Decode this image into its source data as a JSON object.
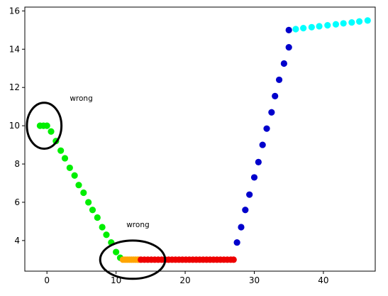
{
  "chart_data": {
    "type": "scatter",
    "xlim": [
      -3.2,
      47.5
    ],
    "ylim": [
      2.4,
      16.2
    ],
    "x_ticks": [
      0,
      10,
      20,
      30,
      40
    ],
    "y_ticks": [
      4,
      6,
      8,
      10,
      12,
      14,
      16
    ],
    "grid": false,
    "series": [
      {
        "color": "#00ee00",
        "x": [
          -1.0,
          -0.5,
          0.0,
          0.6,
          1.3,
          2.0,
          2.6,
          3.3,
          4.0,
          4.6,
          5.3,
          6.0,
          6.6,
          7.3,
          8.0,
          8.6,
          9.3,
          10.0,
          10.6
        ],
        "y": [
          10.0,
          10.0,
          10.0,
          9.7,
          9.2,
          8.7,
          8.3,
          7.8,
          7.4,
          6.9,
          6.5,
          6.0,
          5.6,
          5.2,
          4.7,
          4.3,
          3.9,
          3.4,
          3.1
        ]
      },
      {
        "color": "#ffa500",
        "x": [
          11.0,
          11.3,
          11.6,
          11.9,
          12.2,
          12.5,
          12.8,
          13.1,
          13.3
        ],
        "y": [
          3.0,
          3.0,
          3.0,
          3.0,
          3.0,
          3.0,
          3.0,
          3.0,
          3.0
        ]
      },
      {
        "color": "#ee0000",
        "x": [
          13.6,
          14.1,
          14.6,
          15.1,
          15.6,
          16.1,
          16.6,
          17.1,
          17.6,
          18.1,
          18.6,
          19.1,
          19.6,
          20.1,
          20.6,
          21.1,
          21.6,
          22.1,
          22.6,
          23.1,
          23.6,
          24.1,
          24.6,
          25.1,
          25.6,
          26.1,
          26.6,
          27.0
        ],
        "y": [
          3.0,
          3.0,
          3.0,
          3.0,
          3.0,
          3.0,
          3.0,
          3.0,
          3.0,
          3.0,
          3.0,
          3.0,
          3.0,
          3.0,
          3.0,
          3.0,
          3.0,
          3.0,
          3.0,
          3.0,
          3.0,
          3.0,
          3.0,
          3.0,
          3.0,
          3.0,
          3.0,
          3.0
        ]
      },
      {
        "color": "#0000cc",
        "x": [
          27.5,
          28.1,
          28.7,
          29.3,
          30.0,
          30.6,
          31.2,
          31.8,
          32.5,
          33.0,
          33.6,
          34.3,
          35.0
        ],
        "y": [
          3.9,
          4.7,
          5.6,
          6.4,
          7.3,
          8.1,
          9.0,
          9.85,
          10.7,
          11.55,
          12.4,
          13.25,
          14.1
        ]
      },
      {
        "color": "#0000cc",
        "x": [
          35.0
        ],
        "y": [
          15.0
        ]
      },
      {
        "color": "#00ffff",
        "x": [
          36.0,
          37.1,
          38.3,
          39.4,
          40.6,
          41.8,
          42.9,
          44.1,
          45.2,
          46.4
        ],
        "y": [
          15.05,
          15.1,
          15.15,
          15.2,
          15.25,
          15.3,
          15.35,
          15.4,
          15.45,
          15.5
        ]
      }
    ],
    "annotations": [
      {
        "text": "wrong",
        "x": 3.3,
        "y": 11.3
      },
      {
        "text": "wrong",
        "x": 11.5,
        "y": 4.7
      }
    ],
    "circles": [
      {
        "cx": -0.4,
        "cy": 10.0,
        "rx": 2.5,
        "ry": 1.2
      },
      {
        "cx": 12.4,
        "cy": 3.0,
        "rx": 4.7,
        "ry": 1.0
      }
    ]
  }
}
